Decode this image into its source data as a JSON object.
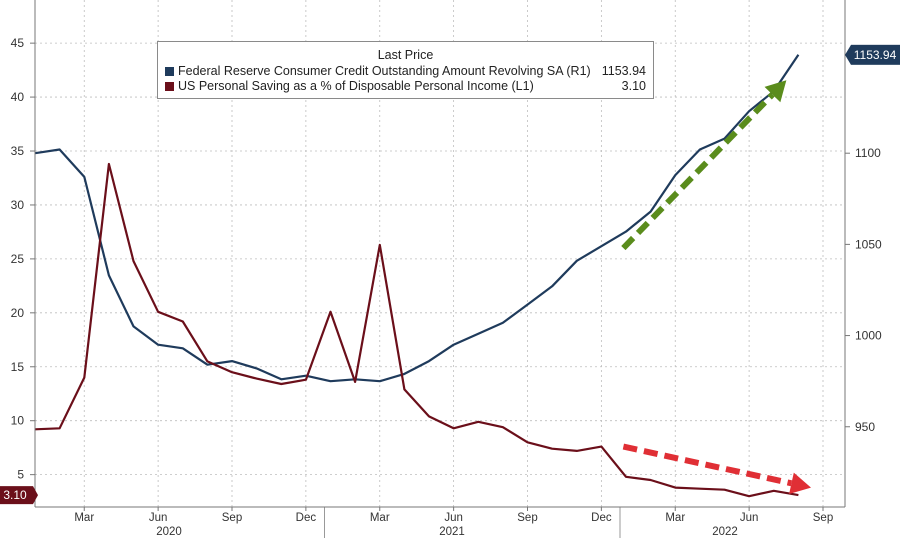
{
  "chart_data": {
    "type": "line",
    "legend": {
      "title": "Last Price",
      "placement": "top-center",
      "entries": [
        {
          "label": "Federal Reserve Consumer Credit Outstanding Amount Revolving SA  (R1)",
          "value": "1153.94",
          "color": "#1f3b5c"
        },
        {
          "label": "US Personal Saving as a % of Disposable Personal Income  (L1)",
          "value": "3.10",
          "color": "#6b0f1a"
        }
      ]
    },
    "x_axis": {
      "ticks": [
        "Mar",
        "Jun",
        "Sep",
        "Dec",
        "Mar",
        "Jun",
        "Sep",
        "Dec",
        "Mar",
        "Jun",
        "Sep"
      ],
      "years": [
        "2020",
        "2021",
        "2022"
      ]
    },
    "y_left": {
      "ticks": [
        "5",
        "10",
        "15",
        "20",
        "25",
        "30",
        "35",
        "40",
        "45"
      ],
      "range": [
        2,
        49
      ]
    },
    "y_right": {
      "ticks": [
        "950",
        "1000",
        "1050",
        "1100"
      ],
      "range": [
        906,
        1184
      ]
    },
    "grid": true,
    "series": [
      {
        "axis": "right",
        "color": "#1f3b5c",
        "x": [
          "2020-01",
          "2020-02",
          "2020-03",
          "2020-04",
          "2020-05",
          "2020-06",
          "2020-07",
          "2020-08",
          "2020-09",
          "2020-10",
          "2020-11",
          "2020-12",
          "2021-01",
          "2021-02",
          "2021-03",
          "2021-04",
          "2021-05",
          "2021-06",
          "2021-07",
          "2021-08",
          "2021-09",
          "2021-10",
          "2021-11",
          "2021-12",
          "2022-01",
          "2022-02",
          "2022-03",
          "2022-04",
          "2022-05",
          "2022-06",
          "2022-07",
          "2022-08"
        ],
        "values": [
          1100,
          1102,
          1087,
          1033,
          1005,
          995,
          993,
          984,
          986,
          982,
          976,
          978,
          975,
          976,
          975,
          979,
          986,
          995,
          1001,
          1007,
          1017,
          1027,
          1041,
          1049,
          1057,
          1068,
          1088,
          1102,
          1108,
          1123,
          1134,
          1154
        ]
      },
      {
        "axis": "left",
        "color": "#6b0f1a",
        "x": [
          "2020-01",
          "2020-02",
          "2020-03",
          "2020-04",
          "2020-05",
          "2020-06",
          "2020-07",
          "2020-08",
          "2020-09",
          "2020-10",
          "2020-11",
          "2020-12",
          "2021-01",
          "2021-02",
          "2021-03",
          "2021-04",
          "2021-05",
          "2021-06",
          "2021-07",
          "2021-08",
          "2021-09",
          "2021-10",
          "2021-11",
          "2021-12",
          "2022-01",
          "2022-02",
          "2022-03",
          "2022-04",
          "2022-05",
          "2022-06",
          "2022-07",
          "2022-08"
        ],
        "values": [
          9.2,
          9.3,
          14,
          33.8,
          24.8,
          20.1,
          19.2,
          15.5,
          14.5,
          13.9,
          13.4,
          13.8,
          20.1,
          13.6,
          26.3,
          12.9,
          10.4,
          9.3,
          9.9,
          9.4,
          8,
          7.4,
          7.2,
          7.6,
          4.8,
          4.5,
          3.8,
          3.7,
          3.6,
          3,
          3.5,
          3.1
        ]
      }
    ],
    "last_value_labels": {
      "left": "3.10",
      "right": "1153.94"
    },
    "annotations": [
      {
        "type": "dashed-arrow",
        "color": "#5a8c1c",
        "from": [
          "2021-12",
          1048
        ],
        "to": [
          "2022-08",
          1140
        ],
        "axis": "right"
      },
      {
        "type": "dashed-arrow",
        "color": "#e02f35",
        "from": [
          "2021-12",
          7.6
        ],
        "to": [
          "2022-09",
          3.8
        ],
        "axis": "left"
      }
    ]
  }
}
